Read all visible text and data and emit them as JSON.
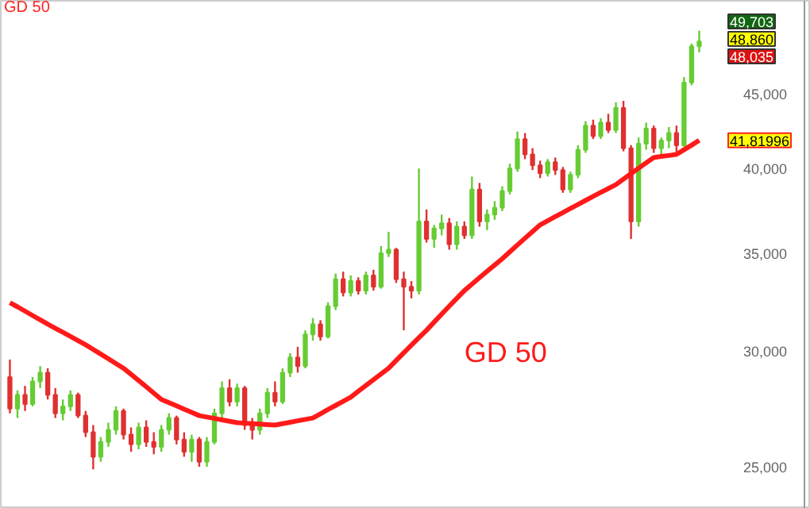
{
  "chart_data": {
    "type": "candlestick",
    "log": true,
    "tick_labels": "y",
    "grid": false,
    "yticks": [
      {
        "value": 25000,
        "label": "25,000"
      },
      {
        "value": 30000,
        "label": "30,000"
      },
      {
        "value": 35000,
        "label": "35,000"
      },
      {
        "value": 40000,
        "label": "40,000"
      },
      {
        "value": 45000,
        "label": "45,000"
      }
    ],
    "ylim": [
      23400,
      52100
    ],
    "categories": [
      null,
      null,
      null,
      null,
      null,
      null,
      null,
      null,
      null,
      null,
      null,
      null,
      null,
      null,
      null,
      null,
      null,
      null,
      null,
      null,
      null,
      null,
      null,
      null,
      null,
      null,
      null,
      null,
      null,
      null,
      null,
      null,
      null,
      null,
      null,
      null,
      null,
      null,
      null,
      null,
      null,
      null,
      null,
      null,
      null,
      null,
      null,
      null,
      null,
      null,
      null,
      null,
      null,
      null,
      null,
      null,
      null,
      null,
      null,
      null,
      null,
      null,
      null,
      null,
      null,
      null,
      null,
      null,
      null,
      null,
      null,
      null,
      null,
      null,
      null,
      null,
      null,
      null,
      null,
      null,
      null,
      null,
      null,
      null,
      null,
      null,
      null,
      null,
      null,
      null,
      null,
      null
    ],
    "colors": [
      "#e03030",
      "#66cc33",
      "#e03030",
      "#66cc33",
      "#66cc33",
      "#e03030",
      "#e03030",
      "#66cc33",
      "#66cc33",
      "#e03030",
      "#e03030",
      "#e03030",
      "#66cc33",
      "#66cc33",
      "#66cc33",
      "#e03030",
      "#e03030",
      "#66cc33",
      "#e03030",
      "#e03030",
      "#66cc33",
      "#66cc33",
      "#e03030",
      "#e03030",
      "#66cc33",
      "#e03030",
      "#66cc33",
      "#66cc33",
      "#66cc33",
      "#e03030",
      "#66cc33",
      "#e03030",
      "#e03030",
      "#66cc33",
      "#66cc33",
      "#e03030",
      "#66cc33",
      "#66cc33",
      "#e03030",
      "#66cc33",
      "#66cc33",
      "#e03030",
      "#66cc33",
      "#66cc33",
      "#e03030",
      "#66cc33",
      "#e03030",
      "#66cc33",
      "#e03030",
      "#66cc33",
      "#66cc33",
      "#e03030",
      "#e03030",
      "#e03030",
      "#66cc33",
      "#e03030",
      "#66cc33",
      "#66cc33",
      "#e03030",
      "#66cc33",
      "#e03030",
      "#66cc33",
      "#e03030",
      "#66cc33",
      "#66cc33",
      "#66cc33",
      "#66cc33",
      "#66cc33",
      "#e03030",
      "#e03030",
      "#e03030",
      "#66cc33",
      "#e03030",
      "#e03030",
      "#66cc33",
      "#66cc33",
      "#66cc33",
      "#e03030",
      "#66cc33",
      "#e03030",
      "#66cc33",
      "#e03030",
      "#e03030",
      "#66cc33",
      "#66cc33",
      "#e03030",
      "#66cc33",
      "#66cc33",
      "#e03030",
      "#66cc33",
      "#66cc33",
      "#66cc33"
    ],
    "ohlc": [
      [
        28800,
        29600,
        27200,
        27400
      ],
      [
        27400,
        28200,
        27000,
        28000
      ],
      [
        28000,
        28400,
        27300,
        27600
      ],
      [
        27600,
        28800,
        27500,
        28600
      ],
      [
        28600,
        29300,
        28300,
        29000
      ],
      [
        29000,
        29200,
        27800,
        28000
      ],
      [
        28000,
        28300,
        27000,
        27200
      ],
      [
        27200,
        27800,
        26900,
        27500
      ],
      [
        27500,
        28200,
        27300,
        28000
      ],
      [
        28000,
        28100,
        27000,
        27100
      ],
      [
        27100,
        27300,
        26200,
        26400
      ],
      [
        26400,
        26700,
        24900,
        25400
      ],
      [
        25400,
        26200,
        25200,
        26000
      ],
      [
        26000,
        26800,
        25800,
        26500
      ],
      [
        26500,
        27500,
        26300,
        27300
      ],
      [
        27300,
        27400,
        26100,
        26300
      ],
      [
        26300,
        26600,
        25600,
        25900
      ],
      [
        25900,
        26800,
        25700,
        26600
      ],
      [
        26600,
        26900,
        25800,
        26000
      ],
      [
        26000,
        26400,
        25500,
        25800
      ],
      [
        25800,
        26700,
        25600,
        26500
      ],
      [
        26500,
        27200,
        26300,
        27000
      ],
      [
        27000,
        27100,
        25900,
        26100
      ],
      [
        26100,
        26400,
        25400,
        25600
      ],
      [
        25600,
        26300,
        25200,
        26100
      ],
      [
        26100,
        26200,
        25000,
        25200
      ],
      [
        25200,
        26200,
        25000,
        26000
      ],
      [
        26000,
        27400,
        25900,
        27200
      ],
      [
        27200,
        28600,
        27000,
        28300
      ],
      [
        28300,
        28700,
        27500,
        27700
      ],
      [
        27700,
        28500,
        27500,
        28300
      ],
      [
        28300,
        28400,
        26500,
        26700
      ],
      [
        26700,
        27000,
        26100,
        26500
      ],
      [
        26500,
        27400,
        26300,
        27200
      ],
      [
        27200,
        28300,
        27000,
        28100
      ],
      [
        28100,
        28600,
        27500,
        27700
      ],
      [
        27700,
        29200,
        27600,
        29000
      ],
      [
        29000,
        29900,
        28800,
        29700
      ],
      [
        29700,
        30200,
        29000,
        29300
      ],
      [
        29300,
        31000,
        29200,
        30800
      ],
      [
        30800,
        31600,
        30500,
        31300
      ],
      [
        31300,
        31500,
        30500,
        30700
      ],
      [
        30700,
        32400,
        30600,
        32200
      ],
      [
        32200,
        33900,
        32000,
        33600
      ],
      [
        33600,
        34000,
        32700,
        32900
      ],
      [
        32900,
        33800,
        32700,
        33500
      ],
      [
        33500,
        33700,
        32800,
        33000
      ],
      [
        33000,
        34000,
        32800,
        33800
      ],
      [
        33800,
        34100,
        33000,
        33200
      ],
      [
        33200,
        35400,
        33100,
        35000
      ],
      [
        35000,
        36200,
        34800,
        35200
      ],
      [
        35200,
        35300,
        33400,
        33600
      ],
      [
        33600,
        34000,
        31000,
        33200
      ],
      [
        33200,
        33500,
        32600,
        33000
      ],
      [
        33000,
        40000,
        32800,
        36800
      ],
      [
        36800,
        37500,
        35600,
        35800
      ],
      [
        35800,
        36600,
        35300,
        36400
      ],
      [
        36400,
        37200,
        36000,
        36700
      ],
      [
        36700,
        37000,
        35200,
        35500
      ],
      [
        35500,
        36800,
        35200,
        36500
      ],
      [
        36500,
        36800,
        35800,
        36000
      ],
      [
        36000,
        39500,
        35800,
        38700
      ],
      [
        38700,
        39100,
        36500,
        36800
      ],
      [
        36800,
        37500,
        36300,
        37200
      ],
      [
        37200,
        38000,
        36900,
        37600
      ],
      [
        37600,
        38900,
        37400,
        38600
      ],
      [
        38600,
        40300,
        38400,
        40000
      ],
      [
        40000,
        42400,
        39800,
        41900
      ],
      [
        41900,
        42300,
        40600,
        40900
      ],
      [
        40900,
        41300,
        39900,
        40200
      ],
      [
        40200,
        40500,
        39400,
        39700
      ],
      [
        39700,
        40600,
        39500,
        40400
      ],
      [
        40400,
        40700,
        39600,
        39900
      ],
      [
        39900,
        40100,
        38500,
        38700
      ],
      [
        38700,
        39800,
        38500,
        39600
      ],
      [
        39600,
        41500,
        39400,
        41200
      ],
      [
        41200,
        43100,
        41000,
        42800
      ],
      [
        42800,
        43200,
        41900,
        42100
      ],
      [
        42100,
        43300,
        41900,
        43000
      ],
      [
        43000,
        43600,
        42300,
        42500
      ],
      [
        42500,
        44400,
        42300,
        44000
      ],
      [
        44000,
        44500,
        41100,
        41300
      ],
      [
        41300,
        41500,
        35800,
        36800
      ],
      [
        36800,
        42000,
        36500,
        41600
      ],
      [
        41600,
        43000,
        41200,
        42600
      ],
      [
        42600,
        42800,
        41000,
        41300
      ],
      [
        41300,
        42000,
        40800,
        41800
      ],
      [
        41800,
        42700,
        41300,
        42300
      ],
      [
        42300,
        42800,
        41000,
        41500
      ],
      [
        41500,
        46200,
        41400,
        45800
      ],
      [
        45800,
        48700,
        45600,
        48500
      ],
      [
        48500,
        49703,
        48035,
        48860
      ]
    ],
    "series": [
      {
        "type": "line",
        "name": "GD 50",
        "color": "#ff1a1a",
        "values": [
          32380,
          32170,
          31950,
          31730,
          31520,
          31300,
          31100,
          30900,
          30700,
          30500,
          30300,
          30080,
          29860,
          29640,
          29420,
          29200,
          28920,
          28640,
          28360,
          28080,
          27800,
          27660,
          27520,
          27380,
          27240,
          27100,
          27040,
          26980,
          26920,
          26860,
          26800,
          26780,
          26760,
          26740,
          26720,
          26700,
          26760,
          26820,
          26880,
          26940,
          27000,
          27180,
          27360,
          27540,
          27720,
          27900,
          28160,
          28420,
          28680,
          28940,
          29200,
          29560,
          29920,
          30280,
          30640,
          31000,
          31400,
          31800,
          32200,
          32600,
          33000,
          33340,
          33680,
          34020,
          34360,
          34700,
          35080,
          35460,
          35840,
          36220,
          36600,
          36840,
          37080,
          37320,
          37560,
          37800,
          38040,
          38280,
          38520,
          38760,
          39000,
          39340,
          39680,
          40020,
          40360,
          40700,
          40770,
          40830,
          40900,
          41200,
          41500,
          41820
        ]
      }
    ],
    "annotations": [
      "GD 50",
      "49,703",
      "48,860",
      "48,035",
      "41,81996"
    ]
  }
}
